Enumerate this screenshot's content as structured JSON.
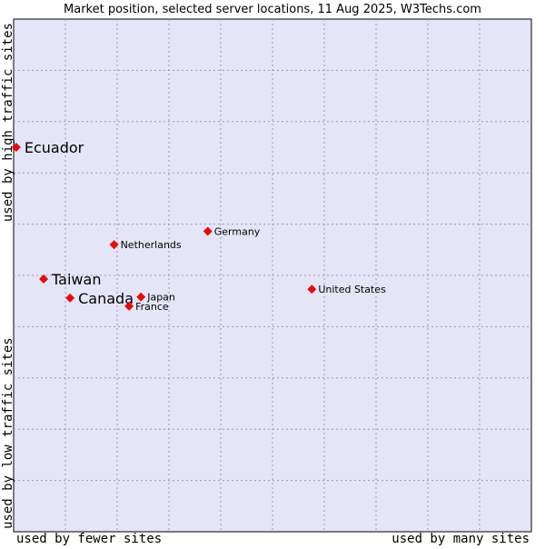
{
  "chart_data": {
    "type": "scatter",
    "title": "Market position, selected server locations, 11 Aug 2025, W3Techs.com",
    "xlabel_left": "used by fewer sites",
    "xlabel_right": "used by many sites",
    "ylabel_top": "used by high traffic sites",
    "ylabel_bottom": "used by low traffic sites",
    "grid": true,
    "xlim": [
      0,
      100
    ],
    "ylim": [
      0,
      100
    ],
    "points": [
      {
        "label": "Ecuador",
        "x": 0.5,
        "y": 75.0,
        "emphasis": true
      },
      {
        "label": "Germany",
        "x": 37.5,
        "y": 58.6,
        "emphasis": false
      },
      {
        "label": "Netherlands",
        "x": 19.4,
        "y": 56.0,
        "emphasis": false
      },
      {
        "label": "Taiwan",
        "x": 5.8,
        "y": 49.3,
        "emphasis": true
      },
      {
        "label": "United States",
        "x": 57.6,
        "y": 47.3,
        "emphasis": false
      },
      {
        "label": "Canada",
        "x": 10.9,
        "y": 45.6,
        "emphasis": true
      },
      {
        "label": "Japan",
        "x": 24.6,
        "y": 45.8,
        "emphasis": false
      },
      {
        "label": "France",
        "x": 22.3,
        "y": 44.0,
        "emphasis": false
      }
    ]
  },
  "colors": {
    "plot_bg": "#e4e6f8",
    "grid": "#9a9ab4",
    "axis": "#000000",
    "marker": "#ff0000",
    "marker_stroke": "#cc0000",
    "text": "#000000"
  }
}
